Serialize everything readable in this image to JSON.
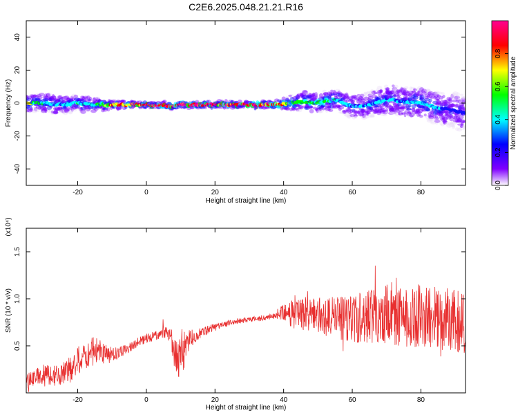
{
  "chart_data": [
    {
      "type": "heatmap",
      "title": "C2E6.2025.048.21.21.R16",
      "xlabel": "Height of straight line (km)",
      "ylabel": "Frequency (Hz)",
      "xlim": [
        -35,
        93
      ],
      "ylim": [
        -50,
        50
      ],
      "x_ticks": [
        -20,
        0,
        20,
        40,
        60,
        80
      ],
      "y_ticks": [
        -40,
        -20,
        0,
        20,
        40
      ],
      "colorbar": {
        "label": "Normalized spectral amplitude",
        "range": [
          0,
          1
        ],
        "ticks": [
          0.0,
          0.2,
          0.4,
          0.6,
          0.8
        ],
        "tick_labels": [
          "0.0",
          "0.2",
          "0.4",
          "0.6",
          "0.8"
        ]
      },
      "ridge": {
        "x": [
          -35,
          -30,
          -25,
          -20,
          -15,
          -10,
          -5,
          0,
          5,
          7,
          8,
          10,
          20,
          30,
          38,
          42,
          46,
          50,
          55,
          60,
          65,
          70,
          75,
          80,
          85,
          88,
          90,
          93
        ],
        "frequency": [
          0,
          0,
          -1,
          0,
          -1,
          -1,
          -1,
          -1,
          -1,
          -2,
          -2,
          -1,
          -1,
          -1,
          -1,
          0,
          1,
          0,
          2,
          -2,
          -1,
          2,
          1,
          0,
          -3,
          -4,
          -5,
          -6
        ],
        "amplitude": [
          0.7,
          0.5,
          0.4,
          0.5,
          0.5,
          0.8,
          0.9,
          1.0,
          1.0,
          0.9,
          0.9,
          1.0,
          1.0,
          1.0,
          0.9,
          0.6,
          0.6,
          0.6,
          0.5,
          0.4,
          0.4,
          0.4,
          0.4,
          0.5,
          0.4,
          0.3,
          0.3,
          0.3
        ],
        "spread_hz": [
          4,
          5,
          5,
          4,
          4,
          2,
          1.5,
          1.5,
          1.5,
          1.5,
          1.5,
          1.5,
          1.5,
          1.5,
          2,
          4,
          5,
          5,
          6,
          6,
          7,
          8,
          8,
          8,
          9,
          9,
          10,
          10
        ]
      },
      "colors": {
        "scale": [
          "#e8d8f8",
          "#7a00ff",
          "#1010ff",
          "#00ffff",
          "#00ff00",
          "#ffff00",
          "#ff0000",
          "#ff0090"
        ]
      }
    },
    {
      "type": "line",
      "xlabel": "Height of straight line (km)",
      "ylabel": "SNR (10 * v/v)",
      "y_multiplier": "(x10⁴)",
      "xlim": [
        -35,
        93
      ],
      "ylim": [
        0,
        1.75
      ],
      "x_ticks": [
        -20,
        0,
        20,
        40,
        60,
        80
      ],
      "y_ticks": [
        0.5,
        1.0,
        1.5
      ],
      "y_tick_labels": [
        "0.5",
        "1.0",
        "1.5"
      ],
      "series": [
        {
          "color": "#e83030",
          "x": [
            -35,
            -30,
            -25,
            -22,
            -20,
            -18,
            -15,
            -12,
            -10,
            -8,
            -5,
            -2,
            0,
            2,
            5,
            7,
            8,
            9,
            10,
            11,
            12,
            15,
            20,
            25,
            30,
            35,
            38,
            40,
            45,
            50,
            55,
            60,
            65,
            70,
            75,
            80,
            85,
            90,
            93
          ],
          "y": [
            0.12,
            0.2,
            0.18,
            0.25,
            0.35,
            0.4,
            0.45,
            0.42,
            0.4,
            0.43,
            0.48,
            0.55,
            0.58,
            0.6,
            0.65,
            0.6,
            0.5,
            0.3,
            0.35,
            0.45,
            0.55,
            0.62,
            0.7,
            0.75,
            0.78,
            0.8,
            0.82,
            0.84,
            0.84,
            0.82,
            0.8,
            0.78,
            0.82,
            0.84,
            0.8,
            0.82,
            0.78,
            0.78,
            0.76
          ],
          "noise": [
            0.08,
            0.1,
            0.12,
            0.14,
            0.15,
            0.16,
            0.15,
            0.12,
            0.08,
            0.06,
            0.05,
            0.05,
            0.05,
            0.05,
            0.06,
            0.1,
            0.2,
            0.22,
            0.25,
            0.2,
            0.12,
            0.06,
            0.04,
            0.03,
            0.03,
            0.03,
            0.03,
            0.12,
            0.18,
            0.2,
            0.22,
            0.25,
            0.3,
            0.32,
            0.32,
            0.34,
            0.34,
            0.34,
            0.36
          ]
        }
      ]
    }
  ]
}
